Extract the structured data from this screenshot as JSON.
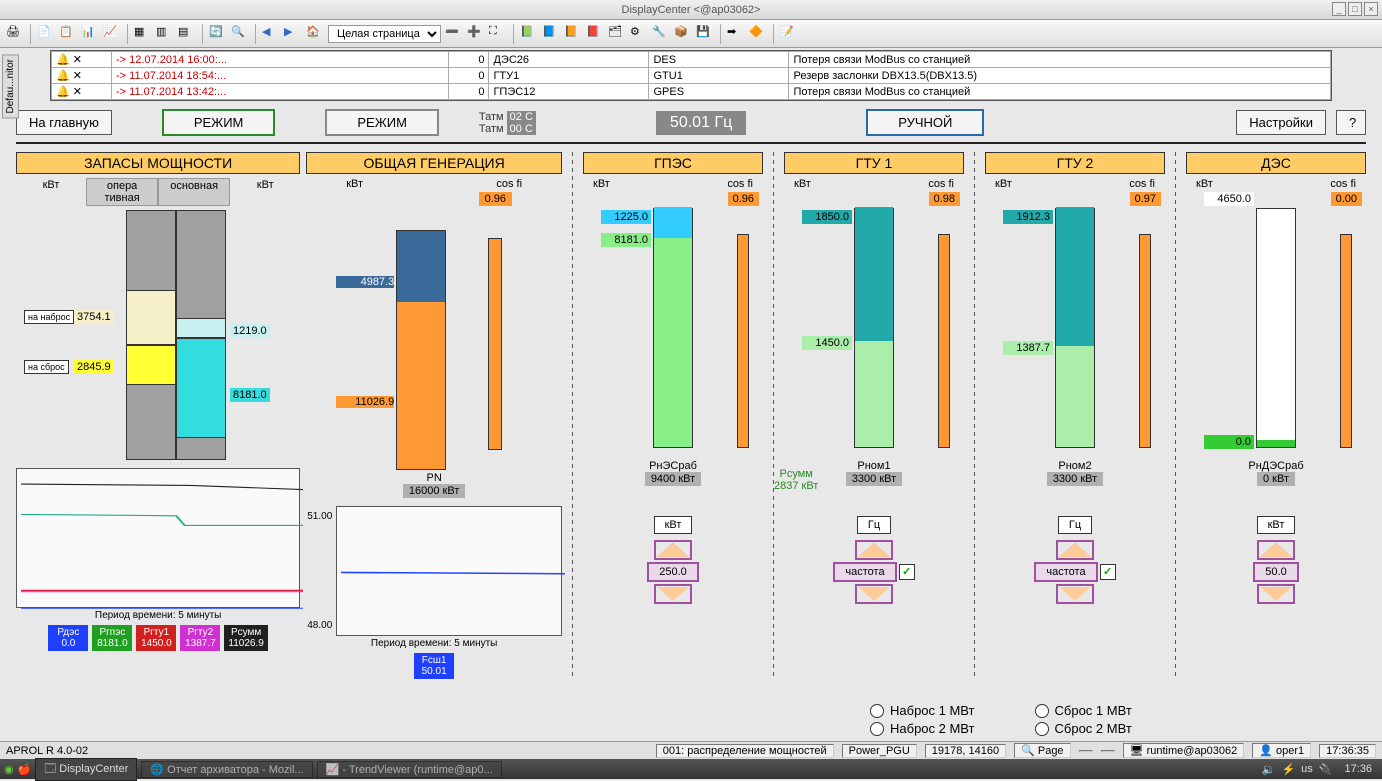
{
  "window": {
    "title": "DisplayCenter <@ap03062>"
  },
  "toolbar": {
    "page_select": "Целая страница"
  },
  "sidetab": "Defau...nitor",
  "alarms": [
    {
      "ts": "-> 12.07.2014 16:00:...",
      "p": "0",
      "tag": "ДЭС26",
      "sys": "DES",
      "msg": "Потеря связи ModBus со станцией"
    },
    {
      "ts": "-> 11.07.2014 18:54:...",
      "p": "0",
      "tag": "ГТУ1",
      "sys": "GTU1",
      "msg": "Резерв заслонки DBX13.5(DBX13.5)"
    },
    {
      "ts": "-> 11.07.2014 13:42:...",
      "p": "0",
      "tag": "ГПЭС12",
      "sys": "GPES",
      "msg": "Потеря связи ModBus со станцией"
    }
  ],
  "top": {
    "home": "На главную",
    "mode1": "РЕЖИМ",
    "mode2": "РЕЖИМ",
    "tatm1_lbl": "Татм",
    "tatm1_val": "02 C",
    "tatm2_lbl": "Татм",
    "tatm2_val": "00 C",
    "freq": "50.01 Гц",
    "manual": "РУЧНОЙ",
    "settings": "Настройки",
    "help": "?"
  },
  "reserve": {
    "title": "ЗАПАСЫ МОЩНОСТИ",
    "unit_l": "кВт",
    "col1a": "опера",
    "col1b": "тивная",
    "col2": "основная",
    "unit_r": "кВт",
    "nabros_lbl": "на наброс",
    "nabros_val": "3754.1",
    "sbros_lbl": "на сброс",
    "sbros_val": "2845.9",
    "r1": "1219.0",
    "r2": "8181.0",
    "colors": {
      "cream": "#f5f0c8",
      "yellow": "#ffff33",
      "lightcyan": "#c8f0f0",
      "cyan": "#33dddd",
      "gray": "#a0a0a0"
    },
    "trend_cap": "Период времени: 5 минуты",
    "legend": [
      {
        "name": "Рдэс",
        "val": "0.0",
        "bg": "#2040ff"
      },
      {
        "name": "Ргпэс",
        "val": "8181.0",
        "bg": "#20a020"
      },
      {
        "name": "Ргту1",
        "val": "1450.0",
        "bg": "#d02020"
      },
      {
        "name": "Ргту2",
        "val": "1387.7",
        "bg": "#d030d0"
      },
      {
        "name": "Рсумм",
        "val": "11026.9",
        "bg": "#202020"
      }
    ]
  },
  "gen": {
    "title": "ОБЩАЯ ГЕНЕРАЦИЯ",
    "kvt": "кВт",
    "cosfi_lbl": "cos fi",
    "cosfi": "0.96",
    "top_val": "4987.3",
    "bot_val": "11026.9",
    "seg_top_h": 30,
    "seg_bot_h": 70,
    "top_color": "#3a6a9a",
    "bot_color": "#ff9933",
    "foot_lbl": "PN",
    "foot_val": "16000 кВт",
    "trend_ytop": "51.00",
    "trend_ybot": "48.00",
    "trend_cap": "Период времени: 5 минуты",
    "legend": {
      "name": "Fсш1",
      "val": "50.01",
      "bg": "#2040ff"
    }
  },
  "units": [
    {
      "title": "ГПЭС",
      "kvt": "кВт",
      "cosfi_lbl": "cos fi",
      "cosfi": "0.96",
      "v1": "1225.0",
      "v2": "8181.0",
      "seg1_h": 13,
      "seg2_h": 87,
      "seg1_color": "#33ccff",
      "seg2_color": "#88ee88",
      "foot_lbl": "РнЭСраб",
      "foot_val": "9400 кВт",
      "mode": "кВт",
      "step": "250.0",
      "check": false
    },
    {
      "title": "ГТУ 1",
      "kvt": "кВт",
      "cosfi_lbl": "cos fi",
      "cosfi": "0.98",
      "v1": "1850.0",
      "v2": "1450.0",
      "seg1_h": 56,
      "seg2_h": 44,
      "seg1_color": "#22aaaa",
      "seg2_color": "#aaeeaa",
      "foot_lbl": "Рном1",
      "foot_val": "3300 кВт",
      "mode": "Гц",
      "step": "частота",
      "check": true,
      "psumm_lbl": "Рсумм",
      "psumm_val": "2837 кВт"
    },
    {
      "title": "ГТУ 2",
      "kvt": "кВт",
      "cosfi_lbl": "cos fi",
      "cosfi": "0.97",
      "v1": "1912.3",
      "v2": "1387.7",
      "seg1_h": 58,
      "seg2_h": 42,
      "seg1_color": "#22aaaa",
      "seg2_color": "#aaeeaa",
      "foot_lbl": "Рном2",
      "foot_val": "3300 кВт",
      "mode": "Гц",
      "step": "частота",
      "check": true
    },
    {
      "title": "ДЭС",
      "kvt": "кВт",
      "cosfi_lbl": "cos fi",
      "cosfi": "0.00",
      "v1": "4650.0",
      "v2": "0.0",
      "seg1_h": 0,
      "seg2_h": 3,
      "seg1_color": "#ffffff",
      "seg2_color": "#33cc33",
      "foot_lbl": "РнДЭСраб",
      "foot_val": "0 кВт",
      "mode": "кВт",
      "step": "50.0",
      "check": false,
      "v1_outside": true
    }
  ],
  "radios": {
    "n1": "Наброс 1 МВт",
    "n2": "Наброс 2 МВт",
    "s1": "Сброс 1 МВт",
    "s2": "Сброс 2 МВт"
  },
  "status": {
    "ver": "APROL R 4.0-02",
    "proc": "001: распределение мощностей",
    "pg": "Power_PGU",
    "coord": "19178, 14160",
    "page": "Page",
    "rt": "runtime@ap03062",
    "user": "oper1",
    "time": "17:36:35"
  },
  "taskbar": {
    "t1": "DisplayCenter",
    "t2": "Отчет архиватора - Mozil...",
    "t3": "- TrendViewer (runtime@ap0...",
    "kb": "us",
    "clock": "17:36"
  }
}
